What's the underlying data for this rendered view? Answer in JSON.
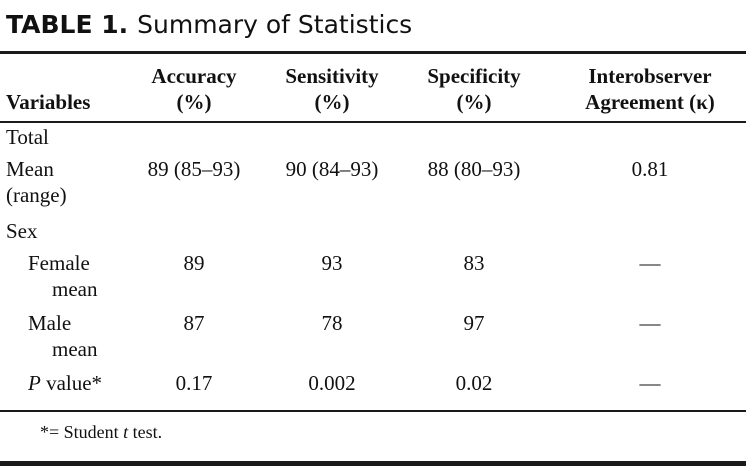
{
  "table": {
    "label": "TABLE 1.",
    "title": "Summary of Statistics",
    "headers": {
      "variables": "Variables",
      "accuracy": [
        "Accuracy",
        "(%)"
      ],
      "sensitivity": [
        "Sensitivity",
        "(%)"
      ],
      "specificity": [
        "Specificity",
        "(%)"
      ],
      "agreement": [
        "Interobserver",
        "Agreement (κ)"
      ]
    },
    "rows": {
      "total": "Total",
      "mean": {
        "label": [
          "Mean",
          "(range)"
        ],
        "accuracy": "89 (85–93)",
        "sensitivity": "90 (84–93)",
        "specificity": "88 (80–93)",
        "agreement": "0.81"
      },
      "sex": "Sex",
      "female": {
        "label": [
          "Female",
          "mean"
        ],
        "accuracy": "89",
        "sensitivity": "93",
        "specificity": "83",
        "agreement": "—"
      },
      "male": {
        "label": [
          "Male",
          "mean"
        ],
        "accuracy": "87",
        "sensitivity": "78",
        "specificity": "97",
        "agreement": "—"
      },
      "pvalue": {
        "label_italic": "P",
        "label_rest": " value*",
        "accuracy": "0.17",
        "sensitivity": "0.002",
        "specificity": "0.02",
        "agreement": "—"
      }
    },
    "footnote": {
      "before": "*= Student ",
      "italic": "t",
      "after": " test."
    }
  }
}
